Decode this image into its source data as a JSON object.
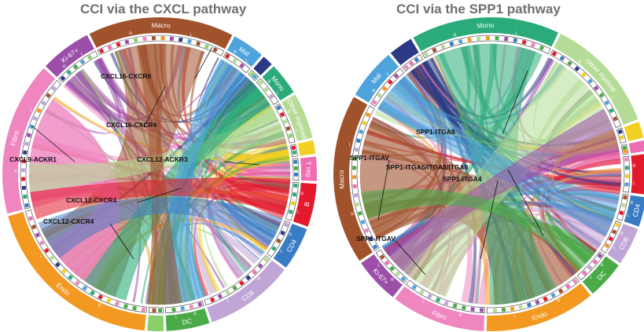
{
  "panels": [
    {
      "title": "CCI via the CXCL pathway",
      "sectors": [
        {
          "label": "Macro",
          "color": "#a0522d",
          "start": -27,
          "end": 28
        },
        {
          "label": "Mal",
          "color": "#4fa3dc",
          "start": 28,
          "end": 41
        },
        {
          "label": "",
          "color": "#2b3a84",
          "start": 41,
          "end": 46
        },
        {
          "label": "Mono",
          "color": "#2bab7a",
          "start": 46,
          "end": 59
        },
        {
          "label": "Other myeloid",
          "color": "#b4dc96",
          "start": 59,
          "end": 77
        },
        {
          "label": "",
          "color": "#f2d024",
          "start": 77,
          "end": 83
        },
        {
          "label": "T reg",
          "color": "#ee6eb4",
          "start": 83,
          "end": 93
        },
        {
          "label": "B",
          "color": "#e21a2c",
          "start": 93,
          "end": 110
        },
        {
          "label": "CD4",
          "color": "#3a7cc4",
          "start": 110,
          "end": 127
        },
        {
          "label": "CD8",
          "color": "#bfa6d6",
          "start": 127,
          "end": 161
        },
        {
          "label": "DC",
          "color": "#4aaa48",
          "start": 161,
          "end": 178
        },
        {
          "label": "",
          "color": "#8ad06a",
          "start": 178,
          "end": 185
        },
        {
          "label": "Endo",
          "color": "#f39820",
          "start": 185,
          "end": 255
        },
        {
          "label": "Fibro",
          "color": "#ef86c0",
          "start": 255,
          "end": 313
        },
        {
          "label": "Ki-67+",
          "color": "#9c4fa8",
          "start": 313,
          "end": 333
        }
      ],
      "annotations": [
        "CXCL16-CXCR6",
        "CXCL16-CXCR4",
        "CXCL9-ACKR1",
        "CXCL12-ACKR3",
        "CXCL12-CXCR4",
        "CXCL12-CXCR4"
      ],
      "band_labels": [
        "R",
        "L"
      ]
    },
    {
      "title": "CCI via the SPP1 pathway",
      "sectors": [
        {
          "label": "Mono",
          "color": "#2bab7a",
          "start": -30,
          "end": 26
        },
        {
          "label": "Other myeloid",
          "color": "#b4dc96",
          "start": 26,
          "end": 70
        },
        {
          "label": "",
          "color": "#f2d024",
          "start": 70,
          "end": 77
        },
        {
          "label": "",
          "color": "#ee6eb4",
          "start": 77,
          "end": 82
        },
        {
          "label": "",
          "color": "#e21a2c",
          "start": 82,
          "end": 98
        },
        {
          "label": "CD4",
          "color": "#3a7cc4",
          "start": 98,
          "end": 110
        },
        {
          "label": "CD8",
          "color": "#bfa6d6",
          "start": 110,
          "end": 125
        },
        {
          "label": "DC",
          "color": "#4aaa48",
          "start": 125,
          "end": 140
        },
        {
          "label": "Endo",
          "color": "#f39820",
          "start": 140,
          "end": 182
        },
        {
          "label": "Fibro",
          "color": "#ef86c0",
          "start": 182,
          "end": 218
        },
        {
          "label": "Ki-67+",
          "color": "#9c4fa8",
          "start": 218,
          "end": 236
        },
        {
          "label": "Macro",
          "color": "#a0522d",
          "start": 236,
          "end": 300
        },
        {
          "label": "Mal",
          "color": "#4fa3dc",
          "start": 300,
          "end": 320
        },
        {
          "label": "",
          "color": "#2b3a84",
          "start": 320,
          "end": 330
        }
      ],
      "annotations": [
        "SPP1-ITGA8",
        "SPP1-ITGAV",
        "SPP1-ITGA5/ITGA8/ITGA8",
        "SPP1-ITGA4",
        "SPP1-ITGAV"
      ],
      "band_labels": [
        "R",
        "L"
      ]
    }
  ]
}
